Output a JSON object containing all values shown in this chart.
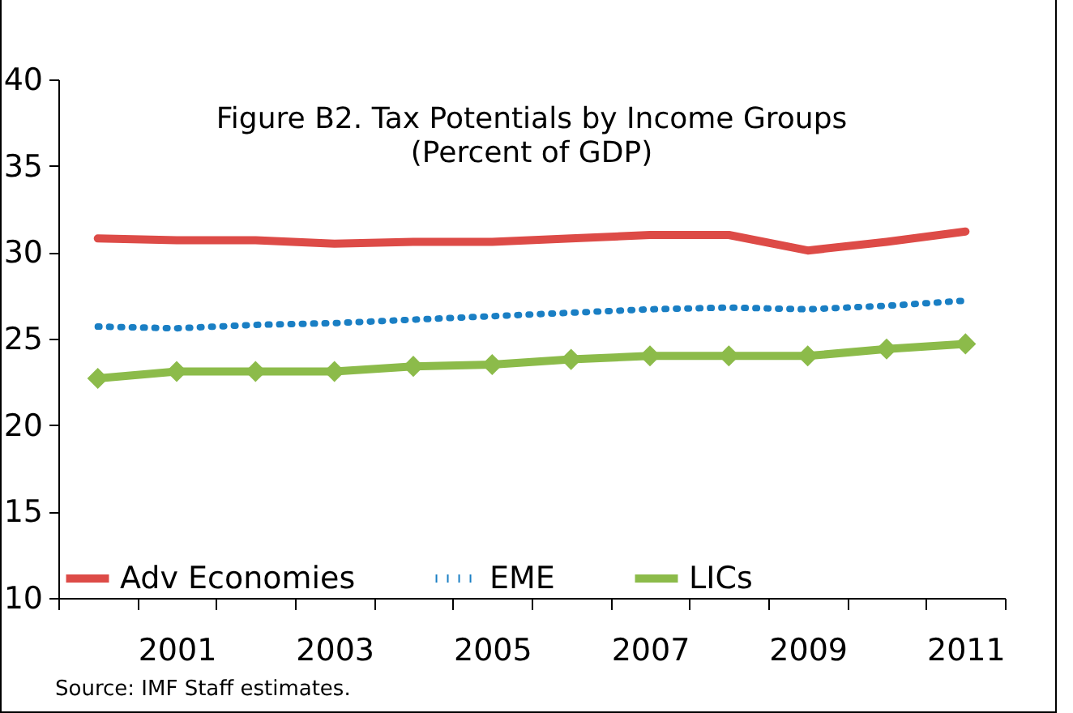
{
  "chart_data": {
    "type": "line",
    "title": "Figure B2. Tax Potentials by Income Groups",
    "subtitle": "(Percent of GDP)",
    "categories": [
      null,
      "2001",
      null,
      "2003",
      null,
      "2005",
      null,
      "2007",
      null,
      "2009",
      null,
      "2011"
    ],
    "series": [
      {
        "name": "Adv Economies",
        "color": "#dd4b47",
        "line_style": "solid",
        "marker": "none",
        "values": [
          30.8,
          30.7,
          30.7,
          30.5,
          30.6,
          30.6,
          30.8,
          31.0,
          31.0,
          30.1,
          30.6,
          31.2
        ]
      },
      {
        "name": "EME",
        "color": "#1a7fc4",
        "line_style": "dotted",
        "marker": "none",
        "values": [
          25.7,
          25.6,
          25.8,
          25.9,
          26.1,
          26.3,
          26.5,
          26.7,
          26.8,
          26.7,
          26.9,
          27.2
        ]
      },
      {
        "name": "LICs",
        "color": "#8cbb4a",
        "line_style": "solid",
        "marker": "diamond",
        "values": [
          22.7,
          23.1,
          23.1,
          23.1,
          23.4,
          23.5,
          23.8,
          24.0,
          24.0,
          24.0,
          24.4,
          24.7
        ]
      }
    ],
    "ylim": [
      10,
      40
    ],
    "yticks": [
      10,
      15,
      20,
      25,
      30,
      35,
      40
    ],
    "grid": false,
    "legend": "bottom",
    "annotations": [
      "Source:  IMF Staff estimates."
    ]
  }
}
